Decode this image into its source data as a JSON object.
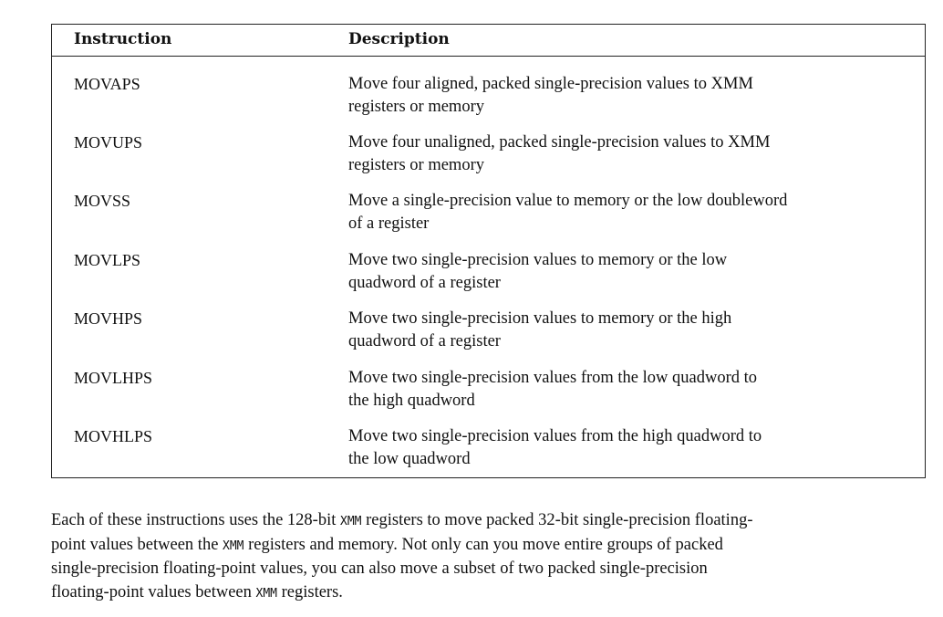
{
  "table": {
    "headers": {
      "instruction": "Instruction",
      "description": "Description"
    },
    "rows": [
      {
        "instruction": "MOVAPS",
        "description_lines": [
          "Move four aligned, packed single-precision values to XMM",
          "registers or memory"
        ]
      },
      {
        "instruction": "MOVUPS",
        "description_lines": [
          "Move four unaligned, packed single-precision values to XMM",
          "registers or memory"
        ]
      },
      {
        "instruction": "MOVSS",
        "description_lines": [
          "Move a single-precision value to memory or the low doubleword",
          "of a register"
        ]
      },
      {
        "instruction": "MOVLPS",
        "description_lines": [
          "Move two single-precision values to memory or the low",
          "quadword of a register"
        ]
      },
      {
        "instruction": "MOVHPS",
        "description_lines": [
          "Move two single-precision values to memory or the high",
          "quadword of a register"
        ]
      },
      {
        "instruction": "MOVLHPS",
        "description_lines": [
          "Move two single-precision values from the low quadword to",
          "the high quadword"
        ]
      },
      {
        "instruction": "MOVHLPS",
        "description_lines": [
          "Move two single-precision values from the high quadword to",
          "the low quadword"
        ]
      }
    ]
  },
  "paragraph": {
    "line1_a": "Each of these instructions uses the 128-bit ",
    "line1_code": "XMM",
    "line1_b": " registers to move packed 32-bit single-precision floating-",
    "line2_a": "point values between the ",
    "line2_code": "XMM",
    "line2_b": " registers and memory. Not only can you move entire groups of packed",
    "line3": "single-precision floating-point values, you can also move a subset of two packed single-precision",
    "line4_a": "floating-point values between ",
    "line4_code": "XMM",
    "line4_b": " registers."
  }
}
